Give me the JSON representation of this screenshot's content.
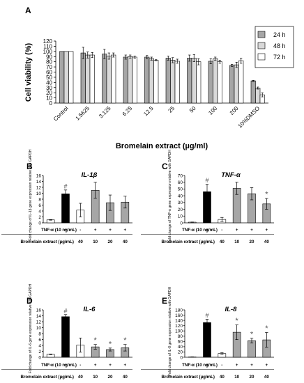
{
  "colors": {
    "24h": "#a6a6a6",
    "48h": "#d9d9d9",
    "72h": "#ffffff",
    "control": "#ffffff",
    "tnf": "#000000",
    "bromelain_only": "#ffffff",
    "combo": "#a6a6a6"
  },
  "chart_data": [
    {
      "panel": "A",
      "type": "bar",
      "title": "",
      "xlabel": "Bromelain extract (µg/ml)",
      "ylabel": "Cell viability (%)",
      "ylim": [
        0,
        120
      ],
      "yticks": [
        0,
        10,
        20,
        30,
        40,
        50,
        60,
        70,
        80,
        90,
        100,
        110,
        120
      ],
      "categories": [
        "Control",
        "1.5625",
        "3.125",
        "6.25",
        "12.5",
        "25",
        "50",
        "100",
        "200",
        "10%DMSO"
      ],
      "legend": "top-right",
      "series": [
        {
          "name": "24 h",
          "values": [
            100,
            97,
            95,
            89,
            89,
            87,
            87,
            81,
            73,
            43
          ],
          "errors": [
            0,
            11,
            9,
            4,
            3,
            4,
            6,
            5,
            2,
            1
          ]
        },
        {
          "name": "48 h",
          "values": [
            100,
            93,
            91,
            90,
            86,
            83,
            87,
            86,
            74,
            29
          ],
          "errors": [
            0,
            6,
            6,
            3,
            3,
            5,
            7,
            3,
            5,
            2
          ]
        },
        {
          "name": "72 h",
          "values": [
            100,
            93,
            93,
            89,
            83,
            81,
            80,
            80,
            82,
            16
          ],
          "errors": [
            0,
            5,
            4,
            2,
            1,
            4,
            6,
            3,
            5,
            4
          ]
        }
      ]
    },
    {
      "panel": "B",
      "type": "bar",
      "title": "IL-1β",
      "ylabel": "Fold change of IL-1β gene expression relative with GAPDH",
      "ylim": [
        0,
        16
      ],
      "yticks": [
        0,
        2,
        4,
        6,
        8,
        10,
        12,
        14,
        16
      ],
      "condition_labels": [
        "TNF-α (10 ng/mL)",
        "Bromelain extract (µg/mL)"
      ],
      "tnf_row": [
        "-",
        "+",
        "-",
        "+",
        "+",
        "+"
      ],
      "brom_row": [
        "-",
        "-",
        "40",
        "10",
        "20",
        "40"
      ],
      "values": [
        1,
        9.8,
        4.3,
        11,
        6.8,
        7
      ],
      "errors": [
        0.1,
        1.3,
        2.3,
        2.7,
        2.6,
        2.0
      ],
      "markers": [
        "",
        "#",
        "",
        "",
        "",
        ""
      ]
    },
    {
      "panel": "C",
      "type": "bar",
      "title": "TNF-α",
      "ylabel": "Fold change of TNF-α gene expression relative with GAPDH",
      "ylim": [
        0,
        70
      ],
      "yticks": [
        0,
        10,
        20,
        30,
        40,
        50,
        60,
        70
      ],
      "condition_labels": [
        "TNF-α (10 ng/mL)",
        "Bromelain extract (µg/mL)"
      ],
      "tnf_row": [
        "-",
        "+",
        "-",
        "+",
        "+",
        "+"
      ],
      "brom_row": [
        "-",
        "-",
        "40",
        "10",
        "20",
        "40"
      ],
      "values": [
        1,
        46,
        5,
        51,
        43,
        28
      ],
      "errors": [
        0.2,
        11,
        3,
        9,
        9,
        8
      ],
      "markers": [
        "",
        "#",
        "",
        "",
        "",
        "*"
      ]
    },
    {
      "panel": "D",
      "type": "bar",
      "title": "IL-6",
      "ylabel": "Fold change of IL-6 gene expression relative with GAPDH",
      "ylim": [
        0,
        16
      ],
      "yticks": [
        0,
        2,
        4,
        6,
        8,
        10,
        12,
        14,
        16
      ],
      "condition_labels": [
        "TNF-α (10 ng/mL)",
        "Bromelain extract (µg/mL)"
      ],
      "tnf_row": [
        "-",
        "+",
        "-",
        "+",
        "+",
        "+"
      ],
      "brom_row": [
        "-",
        "-",
        "40",
        "10",
        "20",
        "40"
      ],
      "values": [
        1,
        13.7,
        4.1,
        3.5,
        2.6,
        3.2
      ],
      "errors": [
        0.1,
        0.7,
        2.4,
        0.8,
        0.5,
        1.1
      ],
      "markers": [
        "",
        "#",
        "",
        "*",
        "*",
        "*"
      ]
    },
    {
      "panel": "E",
      "type": "bar",
      "title": "IL-8",
      "ylabel": "Fold change of IL-8 gene expression relative with GAPDH",
      "ylim": [
        0,
        180
      ],
      "yticks": [
        0,
        20,
        40,
        60,
        80,
        100,
        120,
        140,
        160,
        180
      ],
      "condition_labels": [
        "TNF-α (10 ng/mL)",
        "Bromelain extract (µg/mL)"
      ],
      "tnf_row": [
        "-",
        "+",
        "-",
        "+",
        "+",
        "+"
      ],
      "brom_row": [
        "-",
        "-",
        "40",
        "10",
        "20",
        "40"
      ],
      "values": [
        1,
        132,
        14,
        95,
        63,
        66
      ],
      "errors": [
        0.3,
        12,
        3,
        28,
        9,
        28
      ],
      "markers": [
        "",
        "#",
        "",
        "*",
        "*",
        "*"
      ]
    }
  ]
}
